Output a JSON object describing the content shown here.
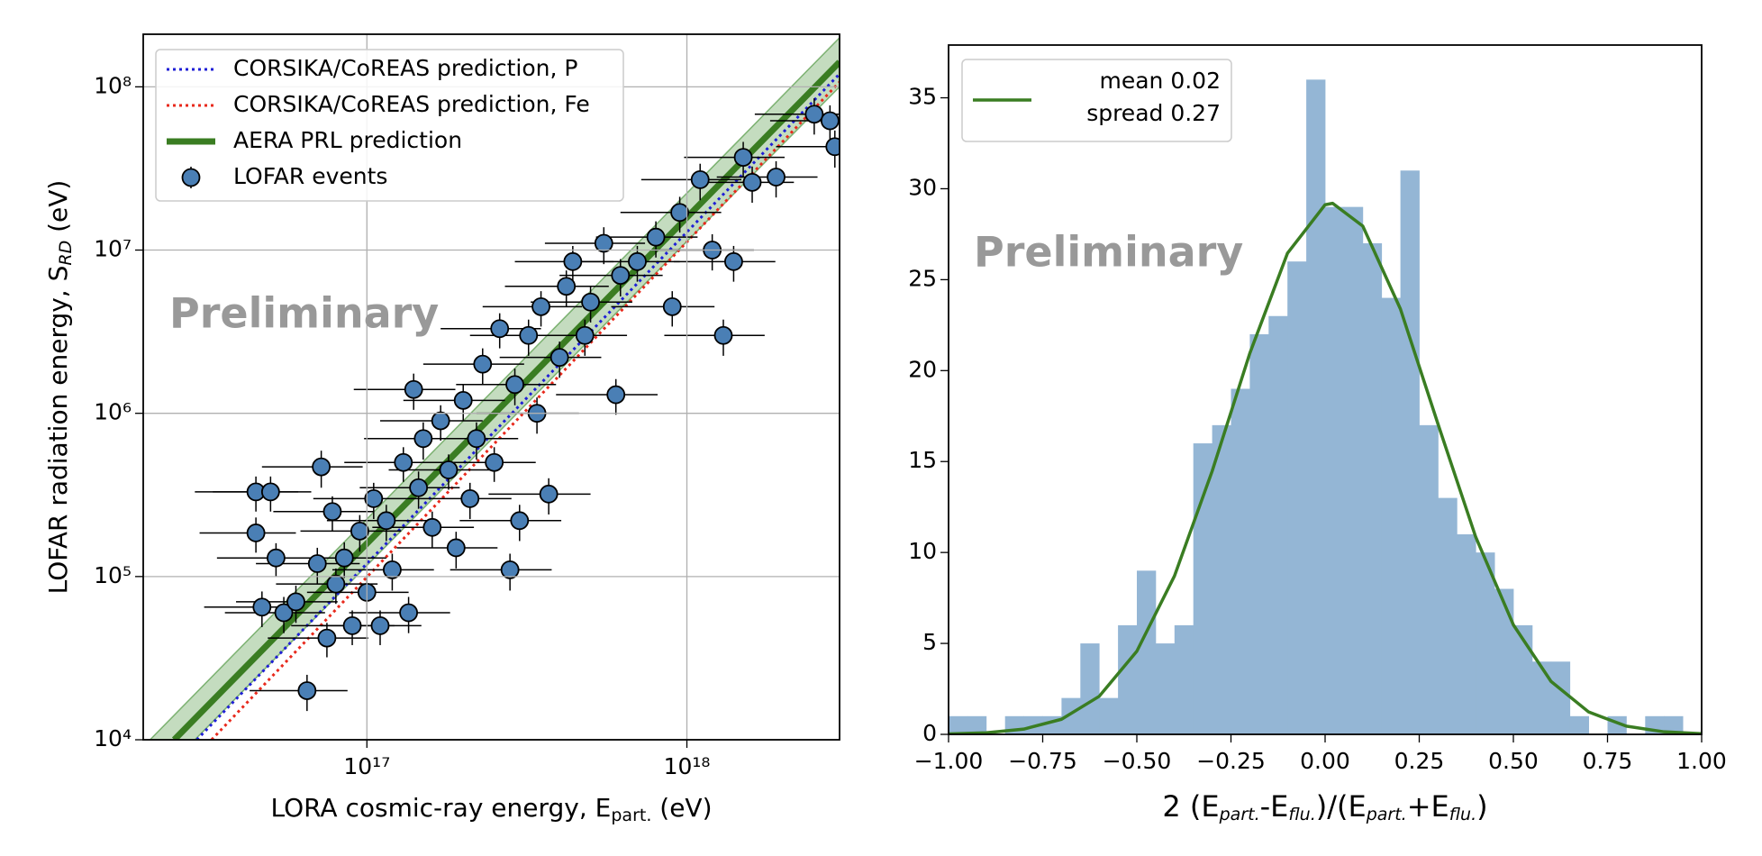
{
  "chart_data": [
    {
      "type": "scatter",
      "xlabel_parts": [
        "LORA cosmic-ray energy, E",
        "part.",
        " (eV)"
      ],
      "ylabel_parts": [
        "LOFAR radiation energy, S",
        "RD",
        " (eV)"
      ],
      "annotation": "Preliminary",
      "xscale": "log",
      "yscale": "log",
      "xlim": [
        2e+16,
        3e+18
      ],
      "ylim": [
        10000.0,
        210000000.0
      ],
      "xticks": [
        {
          "value": 1e+17,
          "label": "10¹⁷"
        },
        {
          "value": 1e+18,
          "label": "10¹⁸"
        }
      ],
      "yticks": [
        {
          "value": 10000.0,
          "label": "10⁴"
        },
        {
          "value": 100000.0,
          "label": "10⁵"
        },
        {
          "value": 1000000.0,
          "label": "10⁶"
        },
        {
          "value": 10000000.0,
          "label": "10⁷"
        },
        {
          "value": 100000000.0,
          "label": "10⁸"
        }
      ],
      "grid": true,
      "legend": "upper left",
      "band": {
        "color": "#3a8a2a",
        "x": [
          2.1e+16,
          3e+18
        ],
        "upper": [
          10000.0,
          200000000.0
        ],
        "lower_x": [
          2.9e+16,
          3e+18
        ],
        "lower": [
          10000.0,
          100000000.0
        ]
      },
      "lines": [
        {
          "name": "CORSIKA/CoREAS prediction, P",
          "color": "#1f1fd6",
          "style": "dotted",
          "x": [
            2.94e+16,
            3e+18
          ],
          "values": [
            10000.0,
            120000000.0
          ]
        },
        {
          "name": "CORSIKA/CoREAS prediction, Fe",
          "color": "#e8291c",
          "style": "dotted",
          "x": [
            3.27e+16,
            3e+18
          ],
          "values": [
            10000.0,
            107000000.0
          ]
        },
        {
          "name": "AERA PRL prediction",
          "color": "#3a7d22",
          "style": "solid",
          "x": [
            2.5e+16,
            3e+18
          ],
          "values": [
            10000.0,
            142000000.0
          ]
        }
      ],
      "series": [
        {
          "name": "LOFAR events",
          "color": "#4a7fb5",
          "edgecolor": "#000000",
          "x": [
            4.5e+16,
            5e+16,
            4.5e+16,
            5.2e+16,
            4.7e+16,
            5.5e+16,
            6e+16,
            6.5e+16,
            7e+16,
            7.2e+16,
            7.5e+16,
            7.8e+16,
            8e+16,
            8.5e+16,
            9e+16,
            9.5e+16,
            1e+17,
            1.05e+17,
            1.1e+17,
            1.15e+17,
            1.2e+17,
            1.3e+17,
            1.35e+17,
            1.4e+17,
            1.45e+17,
            1.5e+17,
            1.6e+17,
            1.7e+17,
            1.8e+17,
            1.9e+17,
            2e+17,
            2.1e+17,
            2.2e+17,
            2.3e+17,
            2.5e+17,
            2.6e+17,
            2.8e+17,
            2.9e+17,
            3e+17,
            3.2e+17,
            3.4e+17,
            3.5e+17,
            3.7e+17,
            4e+17,
            4.2e+17,
            4.4e+17,
            4.8e+17,
            5e+17,
            5.5e+17,
            6e+17,
            6.2e+17,
            7e+17,
            8e+17,
            9e+17,
            9.5e+17,
            1.1e+18,
            1.2e+18,
            1.3e+18,
            1.4e+18,
            1.5e+18,
            1.6e+18,
            1.9e+18,
            2.5e+18,
            2.8e+18,
            2.9e+18
          ],
          "x_err": [
            1.6e+16,
            1.7e+16,
            1.5e+16,
            1.8e+16,
            1.6e+16,
            1.9e+16,
            2.1e+16,
            2.2e+16,
            2.5e+16,
            2.5e+16,
            2.6e+16,
            2.7e+16,
            2.8e+16,
            3e+16,
            3.2e+16,
            3.3e+16,
            3.5e+16,
            3.7e+16,
            3.8e+16,
            4e+16,
            4.2e+16,
            4.5e+16,
            4.7e+16,
            4.9e+16,
            5e+16,
            5.2e+16,
            5.6e+16,
            6e+16,
            6.3e+16,
            6.6e+16,
            7e+16,
            7.3e+16,
            7.7e+16,
            8e+16,
            8.7e+16,
            9e+16,
            9.8e+16,
            1e+17,
            1.05e+17,
            1.1e+17,
            1.2e+17,
            1.2e+17,
            1.3e+17,
            1.4e+17,
            1.5e+17,
            1.5e+17,
            1.7e+17,
            1.75e+17,
            1.9e+17,
            2.1e+17,
            2.2e+17,
            2.5e+17,
            2.8e+17,
            3.2e+17,
            3.3e+17,
            3.8e+17,
            4.2e+17,
            4.5e+17,
            4.9e+17,
            5.2e+17,
            5.6e+17,
            6.6e+17,
            8.7e+17,
            9.8e+17,
            1e+18
          ],
          "values": [
            330000.0,
            330000.0,
            185000.0,
            130000.0,
            65000.0,
            60000.0,
            70000.0,
            20000.0,
            120000.0,
            470000.0,
            42000.0,
            250000.0,
            90000.0,
            130000.0,
            50000.0,
            190000.0,
            80000.0,
            300000.0,
            50000.0,
            220000.0,
            110000.0,
            500000.0,
            60000.0,
            1400000.0,
            350000.0,
            700000.0,
            200000.0,
            900000.0,
            450000.0,
            150000.0,
            1200000.0,
            300000.0,
            700000.0,
            2000000.0,
            500000.0,
            3300000.0,
            110000.0,
            1500000.0,
            220000.0,
            3000000.0,
            1000000.0,
            4500000.0,
            320000.0,
            2200000.0,
            6000000.0,
            8500000.0,
            3000000.0,
            4800000.0,
            11000000.0,
            1300000.0,
            7000000.0,
            8500000.0,
            12000000.0,
            4500000.0,
            17000000.0,
            27000000.0,
            10000000.0,
            3000000.0,
            8500000.0,
            37000000.0,
            26000000.0,
            28000000.0,
            68000000.0,
            62000000.0,
            43000000.0
          ],
          "y_err": [
            80000.0,
            80000.0,
            45000.0,
            30000.0,
            16000.0,
            15000.0,
            18000.0,
            5000.0,
            30000.0,
            120000.0,
            10000.0,
            60000.0,
            22000.0,
            32000.0,
            12000.0,
            48000.0,
            20000.0,
            75000.0,
            12000.0,
            55000.0,
            28000.0,
            120000.0,
            15000.0,
            350000.0,
            90000.0,
            180000.0,
            50000.0,
            220000.0,
            110000.0,
            38000.0,
            300000.0,
            75000.0,
            180000.0,
            500000.0,
            120000.0,
            800000.0,
            28000.0,
            380000.0,
            55000.0,
            750000.0,
            250000.0,
            1100000.0,
            80000.0,
            550000.0,
            1500000.0,
            2100000.0,
            750000.0,
            1200000.0,
            2800000.0,
            320000.0,
            1800000.0,
            2100000.0,
            3000000.0,
            1100000.0,
            4200000.0,
            6800000.0,
            2500000.0,
            750000.0,
            2100000.0,
            9000000.0,
            6500000.0,
            7000000.0,
            17000000.0,
            15000000.0,
            11000000.0
          ]
        }
      ]
    },
    {
      "type": "histogram",
      "xlabel_parts": [
        "2 (E",
        "part.",
        "-E",
        "flu.",
        ")/(E",
        "part.",
        "+E",
        "flu.",
        ")"
      ],
      "annotation": "Preliminary",
      "xlim": [
        -1,
        1
      ],
      "ylim": [
        0,
        37.9
      ],
      "xticks": [
        {
          "value": -1,
          "label": "−1.00"
        },
        {
          "value": -0.75,
          "label": "−0.75"
        },
        {
          "value": -0.5,
          "label": "−0.50"
        },
        {
          "value": -0.25,
          "label": "−0.25"
        },
        {
          "value": 0,
          "label": "0.00"
        },
        {
          "value": 0.25,
          "label": "0.25"
        },
        {
          "value": 0.5,
          "label": "0.50"
        },
        {
          "value": 0.75,
          "label": "0.75"
        },
        {
          "value": 1,
          "label": "1.00"
        }
      ],
      "yticks": [
        0,
        5,
        10,
        15,
        20,
        25,
        30,
        35
      ],
      "grid": false,
      "legend": "upper left",
      "color": "#94b6d5",
      "bins": [
        -1,
        -0.95,
        -0.9,
        -0.85,
        -0.8,
        -0.75,
        -0.7,
        -0.65,
        -0.6,
        -0.55,
        -0.5,
        -0.45,
        -0.4,
        -0.35,
        -0.3,
        -0.25,
        -0.2,
        -0.15,
        -0.1,
        -0.05,
        0,
        0.05,
        0.1,
        0.15,
        0.2,
        0.25,
        0.3,
        0.35,
        0.4,
        0.45,
        0.5,
        0.55,
        0.6,
        0.65,
        0.7,
        0.75,
        0.8,
        0.85,
        0.9,
        0.95,
        1
      ],
      "counts": [
        1,
        1,
        0,
        1,
        1,
        1,
        2,
        5,
        2,
        6,
        9,
        5,
        6,
        16,
        17,
        19,
        22,
        23,
        26,
        36,
        29,
        29,
        27,
        24,
        31,
        17,
        13,
        11,
        10,
        8,
        6,
        4,
        4,
        1,
        0,
        1,
        0,
        1,
        1,
        0
      ],
      "lines": [
        {
          "name": [
            "mean 0.02",
            "spread 0.27"
          ],
          "color": "#3a7d22",
          "x": [
            -1,
            -0.9,
            -0.8,
            -0.7,
            -0.6,
            -0.5,
            -0.4,
            -0.3,
            -0.2,
            -0.1,
            0,
            0.02,
            0.1,
            0.2,
            0.3,
            0.4,
            0.5,
            0.6,
            0.7,
            0.8,
            0.9,
            1
          ],
          "values": [
            0.023,
            0.088,
            0.29,
            0.83,
            2.09,
            4.57,
            8.71,
            14.47,
            20.95,
            26.45,
            29.12,
            29.2,
            27.95,
            23.39,
            17.05,
            10.85,
            6.02,
            2.91,
            1.23,
            0.45,
            0.14,
            0.04
          ]
        }
      ]
    }
  ]
}
